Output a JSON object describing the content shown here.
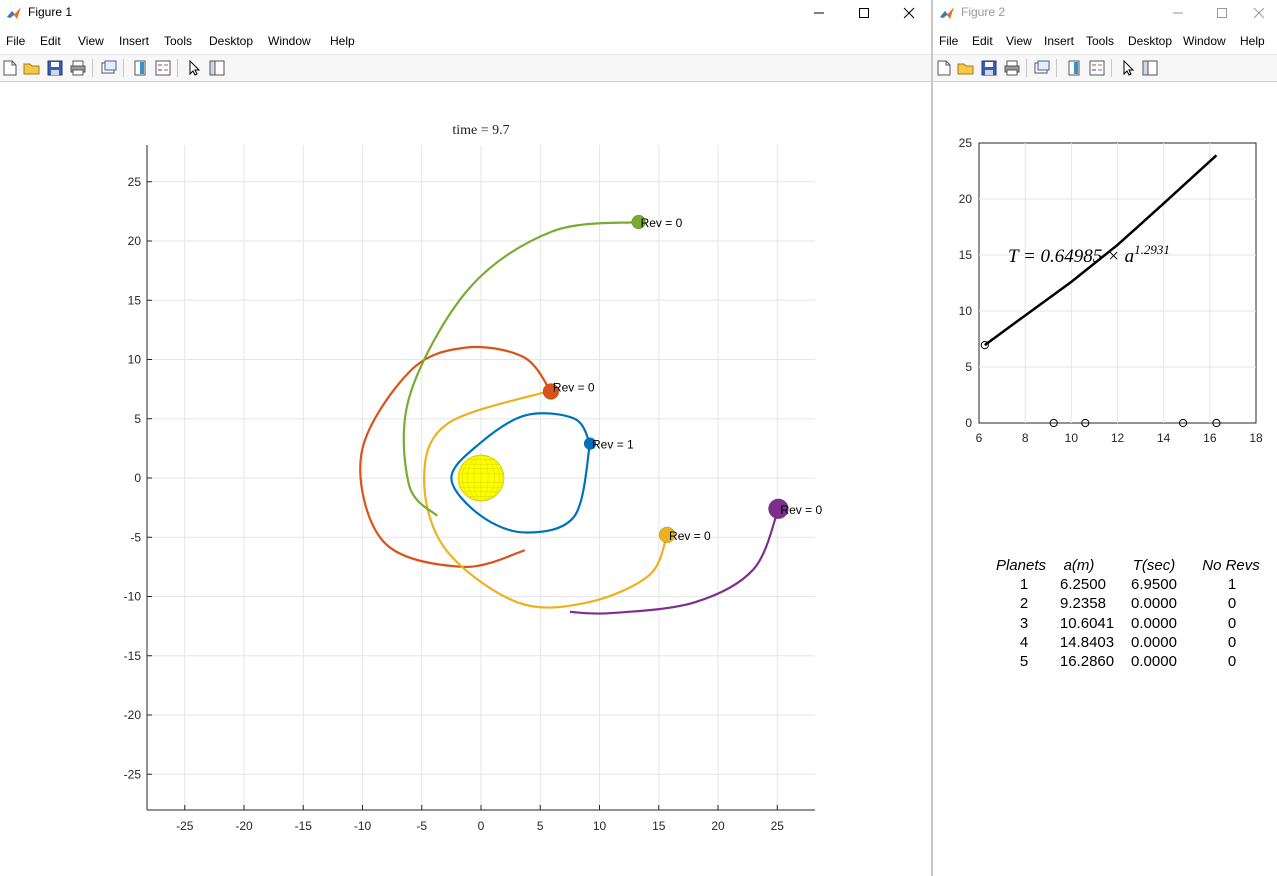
{
  "figure1": {
    "title": "Figure 1",
    "menus": [
      "File",
      "Edit",
      "View",
      "Insert",
      "Tools",
      "Desktop",
      "Window",
      "Help"
    ],
    "toolbar_icons": [
      "new-figure-icon",
      "open-file-icon",
      "save-icon",
      "print-icon",
      "link-plot-icon",
      "insert-colorbar-icon",
      "insert-legend-icon",
      "pointer-icon",
      "property-inspector-icon"
    ],
    "axes_title": "time = 9.7",
    "xticks": [
      "-25",
      "-20",
      "-15",
      "-10",
      "-5",
      "0",
      "5",
      "10",
      "15",
      "20",
      "25"
    ],
    "yticks": [
      "25",
      "20",
      "15",
      "10",
      "5",
      "0",
      "-5",
      "-10",
      "-15",
      "-20",
      "-25"
    ],
    "planet_labels": [
      "Rev = 1",
      "Rev = 0",
      "Rev = 0",
      "Rev = 0",
      "Rev = 0"
    ]
  },
  "figure2": {
    "title": "Figure 2",
    "menus": [
      "File",
      "Edit",
      "View",
      "Insert",
      "Tools",
      "Desktop",
      "Window",
      "Help"
    ],
    "xticks": [
      "6",
      "8",
      "10",
      "12",
      "14",
      "16",
      "18"
    ],
    "yticks": [
      "25",
      "20",
      "15",
      "10",
      "5",
      "0"
    ],
    "equation": "T = 0.64985 × a",
    "equation_exponent": "1.2931",
    "table_headers": [
      "Planets",
      "a(m)",
      "T(sec)",
      "No Revs"
    ],
    "table_rows": [
      [
        "1",
        "6.2500",
        "6.9500",
        "1"
      ],
      [
        "2",
        "9.2358",
        "0.0000",
        "0"
      ],
      [
        "3",
        "10.6041",
        "0.0000",
        "0"
      ],
      [
        "4",
        "14.8403",
        "0.0000",
        "0"
      ],
      [
        "5",
        "16.2860",
        "0.0000",
        "0"
      ]
    ]
  },
  "colors": {
    "planet1": "#0072BD",
    "planet2": "#D95319",
    "planet3": "#EDB120",
    "planet4": "#7E2F8E",
    "planet5": "#77AC30",
    "sun": "#FFFF00",
    "grid": "#e6e6e6"
  },
  "chart_data": [
    {
      "type": "line",
      "title": "time = 9.7",
      "xlim": [
        -28,
        28
      ],
      "ylim": [
        -28,
        28
      ],
      "grid": true,
      "series": [
        {
          "x": [
            9.2,
            7.9,
            3.8,
            0.0,
            -2.5,
            0.0,
            3.8,
            7.9,
            9.2
          ],
          "y": [
            2.9,
            5.0,
            5.3,
            3.0,
            0.0,
            -3.2,
            -4.6,
            -3.2,
            2.9
          ]
        },
        {
          "x": [
            5.9,
            3.6,
            -1.3,
            -6.0,
            -10.1,
            -8.2,
            -1.5,
            3.7
          ],
          "y": [
            7.3,
            10.2,
            11.0,
            9.0,
            2.0,
            -5.4,
            -7.5,
            -6.1
          ]
        },
        {
          "x": [
            15.7,
            14.2,
            9.0,
            3.1,
            -3.0,
            -4.8,
            -2.8,
            5.6
          ],
          "y": [
            -4.8,
            -8.2,
            -10.5,
            -10.5,
            -6.0,
            0.0,
            4.6,
            7.3
          ]
        },
        {
          "x": [
            25.1,
            23.0,
            18.0,
            11.0,
            7.5
          ],
          "y": [
            -2.6,
            -7.7,
            -10.5,
            -11.4,
            -11.3
          ]
        },
        {
          "x": [
            13.3,
            6.0,
            -1.0,
            -6.0,
            -6.1,
            -3.7
          ],
          "y": [
            21.6,
            20.8,
            16.0,
            7.0,
            -0.5,
            -3.2
          ]
        }
      ]
    },
    {
      "type": "line",
      "xlim": [
        6,
        18
      ],
      "ylim": [
        0,
        25
      ],
      "grid": true,
      "series": [
        {
          "x": [
            6.25,
            8,
            10,
            12,
            14,
            16.286
          ],
          "y": [
            6.95,
            9.6,
            12.6,
            15.9,
            19.6,
            23.9
          ]
        },
        {
          "x": [
            6.25,
            9.2358,
            10.6041,
            14.8403,
            16.286
          ],
          "y": [
            6.95,
            0,
            0,
            0,
            0
          ]
        }
      ]
    }
  ]
}
